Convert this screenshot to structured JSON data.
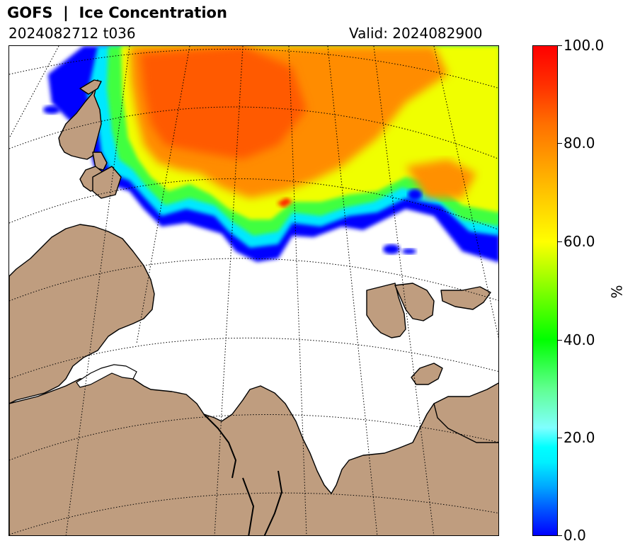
{
  "header": {
    "title": "GOFS  |  Ice Concentration",
    "run": "2024082712 t036",
    "valid": "Valid: 2024082900"
  },
  "colorbar": {
    "unit": "%",
    "ticks": [
      "100.0",
      "80.0",
      "60.0",
      "40.0",
      "20.0",
      "0.0"
    ],
    "range": [
      0,
      100
    ],
    "colors": {
      "low": "#0000ff",
      "mid_low": "#00ffff",
      "mid": "#00ff00",
      "mid_high": "#ffff00",
      "high": "#ff0000"
    }
  },
  "map": {
    "land_color": "#bf9d7f",
    "ocean_color": "#ffffff",
    "graticule": "dotted"
  }
}
